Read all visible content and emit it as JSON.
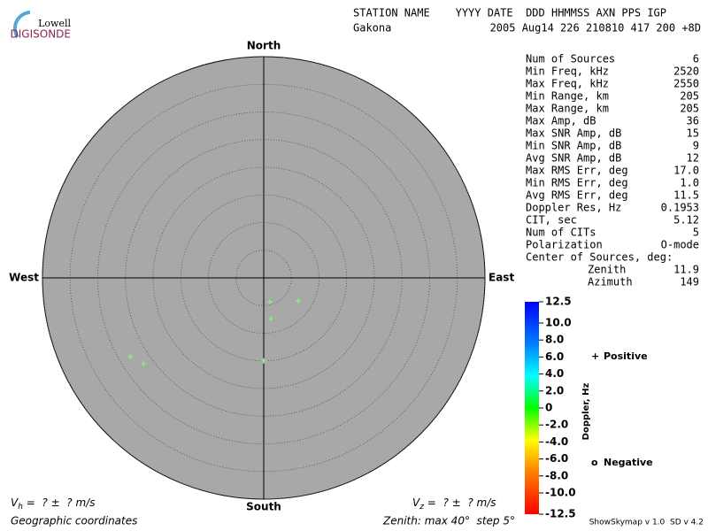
{
  "logo": {
    "top": "Lowell",
    "bottom": "DIGISONDE"
  },
  "header": {
    "columns": "STATION NAME    YYYY DATE  DDD HHMMSS AXN PPS IGP",
    "station": "Gakona",
    "values": "2005 Aug14 226 210810 417 200 +8D"
  },
  "stats": [
    [
      "Num of Sources",
      6
    ],
    [
      "Min Freq, kHz",
      2520
    ],
    [
      "Max Freq, kHz",
      2550
    ],
    [
      "Min Range, km",
      205
    ],
    [
      "Max Range, km",
      205
    ],
    [
      "Max Amp, dB",
      36
    ],
    [
      "Max SNR Amp, dB",
      15
    ],
    [
      "Min SNR Amp, dB",
      9
    ],
    [
      "Avg SNR Amp, dB",
      12
    ],
    [
      "Max RMS Err, deg",
      "17.0"
    ],
    [
      "Min RMS Err, deg",
      "1.0"
    ],
    [
      "Avg RMS Err, deg",
      "11.5"
    ],
    [
      "Doppler Res, Hz",
      0.1953
    ],
    [
      "CIT, sec",
      5.12
    ],
    [
      "Num of CITs",
      5
    ],
    [
      "Polarization",
      "O-mode"
    ]
  ],
  "center": {
    "title": "Center of Sources, deg:",
    "zenith_label": "Zenith",
    "zenith": 11.9,
    "azimuth_label": "Azimuth",
    "azimuth": 149
  },
  "footer": {
    "vh_v": "V",
    "vh_sub": "h",
    "vh_rest": " =  ? ±  ? m/s",
    "vz_v": "V",
    "vz_sub": "z",
    "vz_rest": " =  ? ±  ? m/s",
    "coords": "Geographic coordinates",
    "zenith": "Zenith: max 40°  step 5°",
    "version": "ShowSkymap v 1.0  SD v 4.2"
  },
  "chart_data": {
    "type": "skymap",
    "directions": {
      "north": "North",
      "south": "South",
      "east": "East",
      "west": "West"
    },
    "rlim": [
      0,
      40
    ],
    "rticks": [
      5,
      10,
      15,
      20,
      25,
      30,
      35,
      40
    ],
    "series": [
      {
        "name": "Positive",
        "marker": "+",
        "color": "#80ff80",
        "zenith": [
          4.5,
          7.5,
          7.5,
          15.0,
          28.0,
          26.7
        ],
        "azimuth": [
          165.5,
          123.7,
          170.1,
          180,
          239.5,
          234.5
        ]
      }
    ],
    "legend": {
      "positive": "Positive",
      "negative": "Negative",
      "positive_color": "#0000c0",
      "negative_color": "#d00000"
    },
    "colorbar": {
      "label": "Doppler, Hz",
      "lim": [
        -12.5,
        12.5
      ],
      "ticks": [
        12.5,
        {
          "value": 10,
          "label": "10.0"
        },
        {
          "value": 8,
          "label": "8.0"
        },
        {
          "value": 6,
          "label": "6.0"
        },
        {
          "value": 4,
          "label": "4.0"
        },
        {
          "value": 2,
          "label": "2.0"
        },
        0,
        {
          "value": -2,
          "label": "-2.0"
        },
        {
          "value": -4,
          "label": "-4.0"
        },
        {
          "value": -6,
          "label": "-6.0"
        },
        {
          "value": -8,
          "label": "-8.0"
        },
        {
          "value": -10,
          "label": "-10.0"
        },
        -12.5
      ]
    }
  }
}
